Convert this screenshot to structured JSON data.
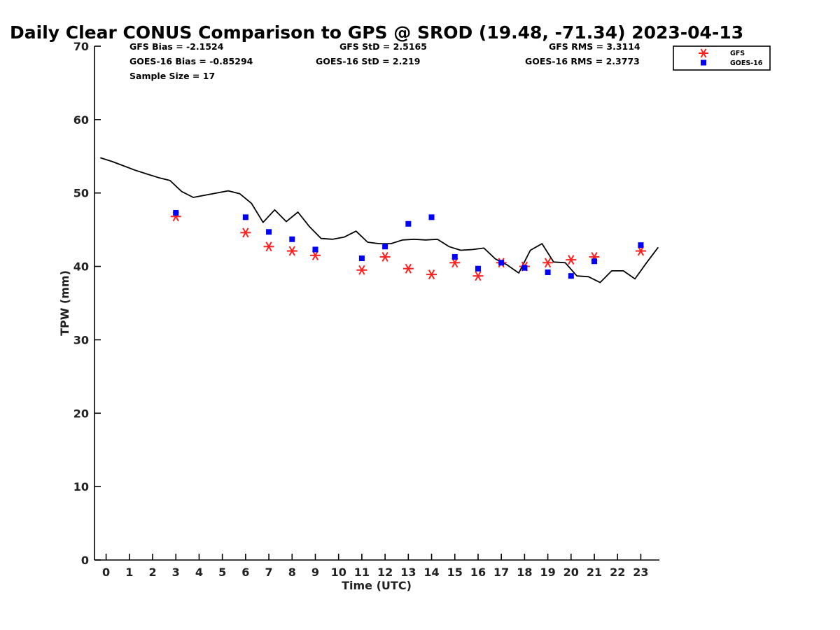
{
  "chart_data": {
    "type": "line",
    "title": "Daily Clear CONUS Comparison to GPS @ SROD (19.48, -71.34) 2023-04-13",
    "xlabel": "Time (UTC)",
    "ylabel": "TPW (mm)",
    "xlim": [
      -0.5,
      23.8
    ],
    "ylim": [
      0,
      70
    ],
    "x_ticks": [
      "0",
      "1",
      "2",
      "3",
      "4",
      "5",
      "6",
      "7",
      "8",
      "9",
      "10",
      "11",
      "12",
      "13",
      "14",
      "15",
      "16",
      "17",
      "18",
      "19",
      "20",
      "21",
      "22",
      "23"
    ],
    "y_ticks": [
      "0",
      "10",
      "20",
      "30",
      "40",
      "50",
      "60",
      "70"
    ],
    "grid": false,
    "legend_position": "top-right",
    "stats": {
      "gfs_bias": "GFS Bias = -2.1524",
      "goes_bias": "GOES-16 Bias = -0.85294",
      "sample_size": "Sample Size = 17",
      "gfs_std": "GFS StD = 2.5165",
      "goes_std": "GOES-16 StD = 2.219",
      "gfs_rms": "GFS RMS = 3.3114",
      "goes_rms": "GOES-16 RMS = 2.3773"
    },
    "series": [
      {
        "name": "",
        "kind": "line",
        "color": "#000000",
        "x": [
          -0.25,
          0.25,
          0.75,
          1.25,
          1.75,
          2.25,
          2.75,
          3.25,
          3.75,
          4.25,
          4.75,
          5.25,
          5.75,
          6.25,
          6.75,
          7.25,
          7.75,
          8.25,
          8.75,
          9.25,
          9.75,
          10.25,
          10.75,
          11.25,
          11.75,
          12.25,
          12.75,
          13.25,
          13.75,
          14.25,
          14.75,
          15.25,
          15.75,
          16.25,
          16.75,
          17.25,
          17.75,
          18.25,
          18.75,
          19.25,
          19.75,
          20.25,
          20.75,
          21.25,
          21.75,
          22.25,
          22.75,
          23.25,
          23.75
        ],
        "y": [
          54.8,
          54.3,
          53.7,
          53.1,
          52.6,
          52.1,
          51.7,
          50.2,
          49.4,
          49.7,
          50.0,
          50.3,
          49.9,
          48.6,
          46.0,
          47.7,
          46.1,
          47.4,
          45.4,
          43.8,
          43.7,
          44.0,
          44.8,
          43.3,
          43.1,
          43.1,
          43.6,
          43.7,
          43.6,
          43.7,
          42.7,
          42.2,
          42.3,
          42.5,
          41.0,
          40.2,
          39.1,
          42.2,
          43.1,
          40.6,
          40.5,
          38.7,
          38.6,
          37.8,
          39.4,
          39.4,
          38.3,
          40.5,
          42.6
        ]
      },
      {
        "name": "GFS",
        "kind": "asterisk",
        "color": "#ff1f1f",
        "x": [
          3,
          6,
          7,
          8,
          9,
          11,
          12,
          13,
          14,
          15,
          16,
          17,
          18,
          19,
          20,
          21,
          23
        ],
        "y": [
          46.8,
          44.6,
          42.7,
          42.1,
          41.5,
          39.5,
          41.3,
          39.7,
          38.9,
          40.5,
          38.7,
          40.5,
          40.0,
          40.5,
          40.9,
          41.3,
          42.1
        ]
      },
      {
        "name": "GOES-16",
        "kind": "square",
        "color": "#0000ff",
        "x": [
          3,
          6,
          7,
          8,
          9,
          11,
          12,
          13,
          14,
          15,
          16,
          17,
          18,
          19,
          20,
          21,
          23
        ],
        "y": [
          47.3,
          46.7,
          44.7,
          43.7,
          42.3,
          41.1,
          42.7,
          45.8,
          46.7,
          41.3,
          39.7,
          40.5,
          39.8,
          39.2,
          38.7,
          40.7,
          42.9
        ]
      }
    ]
  }
}
